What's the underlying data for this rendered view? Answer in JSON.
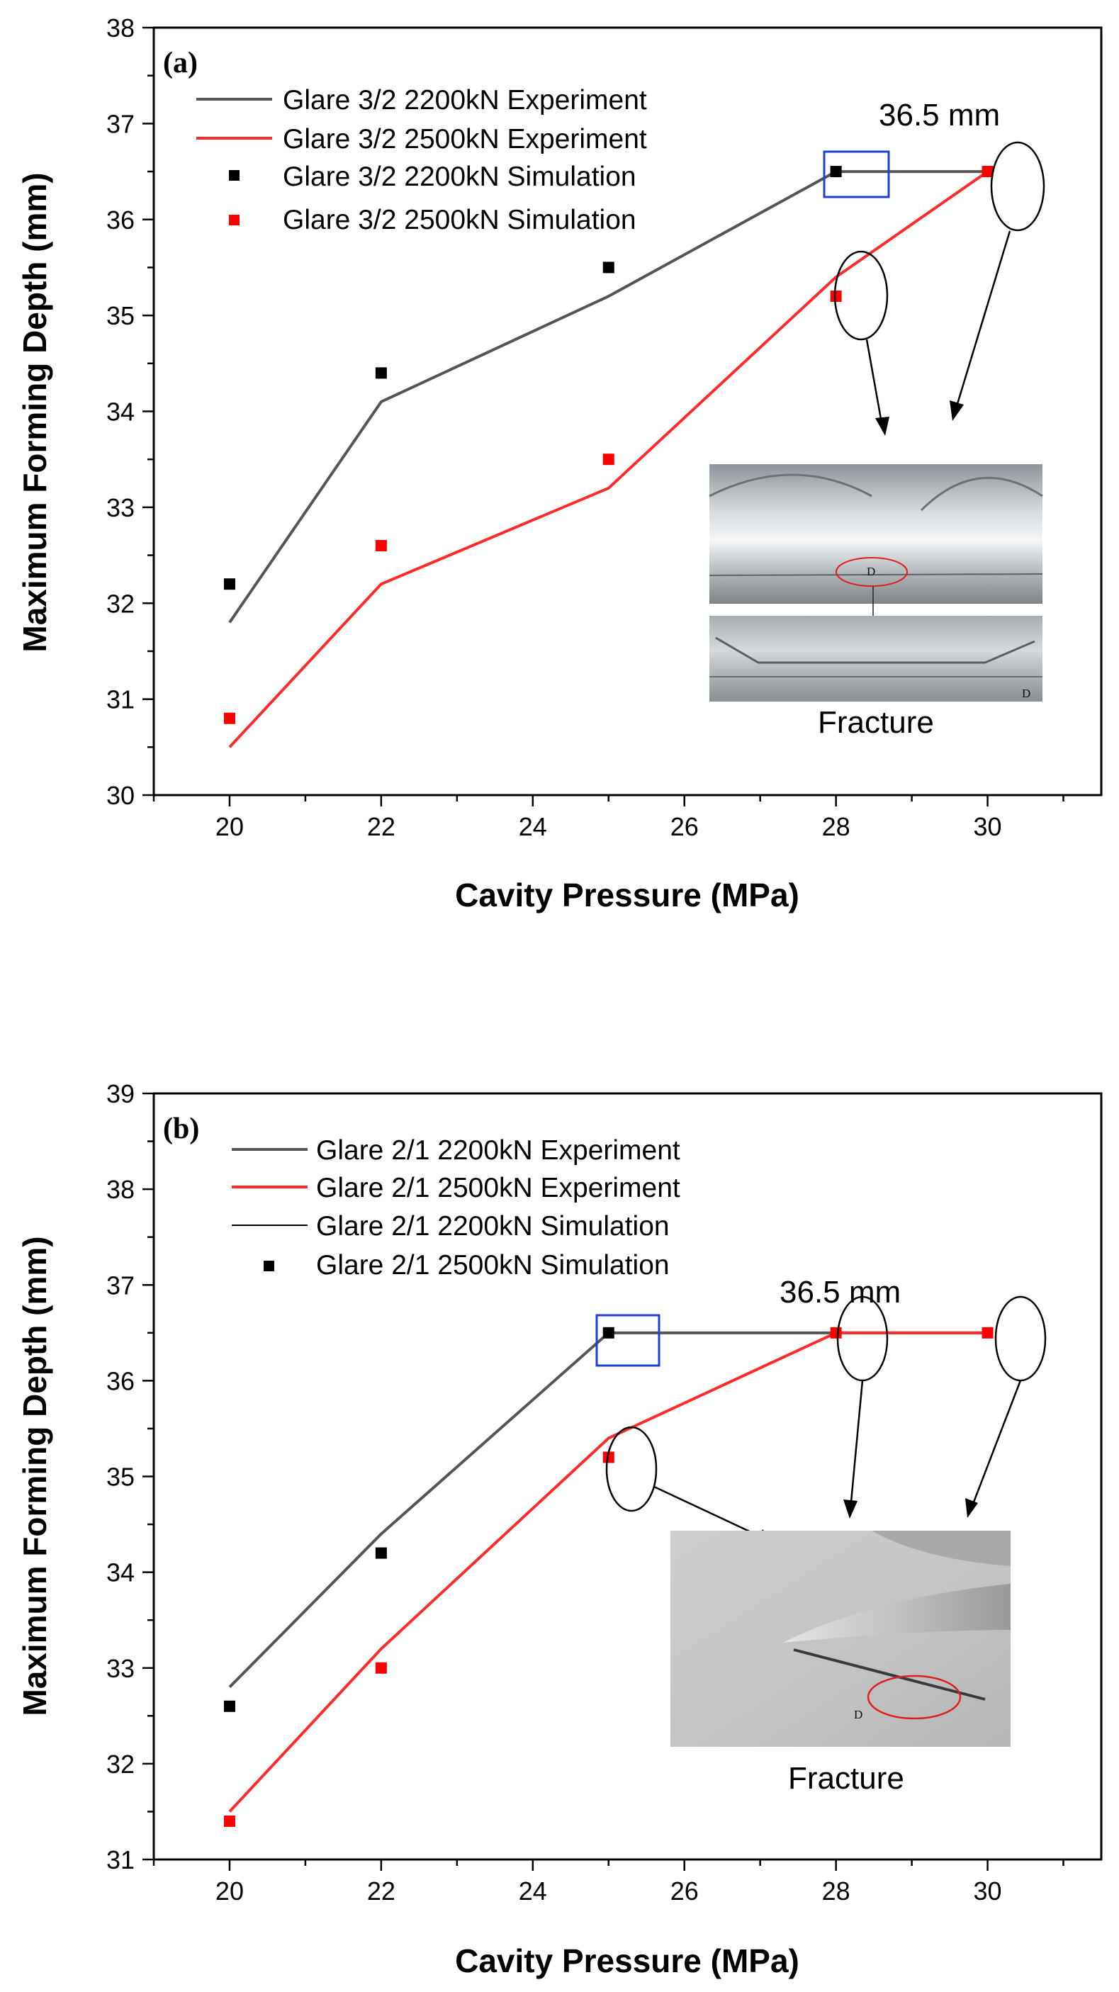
{
  "chart_data": [
    {
      "type": "line",
      "panel_label": "(a)",
      "xlabel": "Cavity Pressure (MPa)",
      "ylabel": "Maximum Forming Depth (mm)",
      "xlim": [
        19,
        31.5
      ],
      "ylim": [
        30,
        38
      ],
      "x_ticks": [
        "20",
        "22",
        "24",
        "26",
        "28",
        "30"
      ],
      "y_ticks": [
        "30",
        "31",
        "32",
        "33",
        "34",
        "35",
        "36",
        "37",
        "38"
      ],
      "legend_position": "top-left",
      "series": [
        {
          "name": "Glare 3/2 2200kN Experiment",
          "kind": "line",
          "color": "#555555",
          "x": [
            20,
            22,
            25,
            28,
            30
          ],
          "y": [
            31.8,
            34.1,
            35.2,
            36.5,
            36.5
          ]
        },
        {
          "name": "Glare 3/2 2500kN Experiment",
          "kind": "line",
          "color": "#ff2a2a",
          "x": [
            20,
            22,
            25,
            28,
            30
          ],
          "y": [
            30.5,
            32.2,
            33.2,
            35.4,
            36.5
          ]
        },
        {
          "name": "Glare 3/2 2200kN Simulation",
          "kind": "marker",
          "color": "#000000",
          "x": [
            20,
            22,
            25,
            28
          ],
          "y": [
            32.2,
            34.4,
            35.5,
            36.5
          ]
        },
        {
          "name": "Glare 3/2 2500kN Simulation",
          "kind": "marker",
          "color": "#ff0000",
          "x": [
            20,
            22,
            25,
            28,
            30
          ],
          "y": [
            30.8,
            32.6,
            33.5,
            35.2,
            36.5
          ]
        }
      ],
      "annotations": {
        "depth_label": "36.5 mm",
        "fracture_label": "Fracture",
        "photo_marker": "D"
      }
    },
    {
      "type": "line",
      "panel_label": "(b)",
      "xlabel": "Cavity Pressure (MPa)",
      "ylabel": "Maximum Forming Depth (mm)",
      "xlim": [
        19,
        31.5
      ],
      "ylim": [
        31,
        39
      ],
      "x_ticks": [
        "20",
        "22",
        "24",
        "26",
        "28",
        "30"
      ],
      "y_ticks": [
        "31",
        "32",
        "33",
        "34",
        "35",
        "36",
        "37",
        "38",
        "39"
      ],
      "legend_position": "top-left",
      "series": [
        {
          "name": "Glare 2/1 2200kN Experiment",
          "kind": "line",
          "color": "#555555",
          "x": [
            20,
            22,
            25,
            28,
            30
          ],
          "y": [
            32.8,
            34.4,
            36.5,
            36.5,
            36.5
          ]
        },
        {
          "name": "Glare 2/1 2500kN Experiment",
          "kind": "line",
          "color": "#ff2a2a",
          "x": [
            20,
            22,
            25,
            28,
            30
          ],
          "y": [
            31.5,
            33.2,
            35.4,
            36.5,
            36.5
          ]
        },
        {
          "name": "Glare 2/1 2200kN Simulation",
          "kind": "marker",
          "color": "#000000",
          "x": [
            20,
            22,
            25
          ],
          "y": [
            32.6,
            34.2,
            36.5
          ]
        },
        {
          "name": "Glare 2/1 2500kN Simulation",
          "kind": "marker",
          "color": "#ff0000",
          "x": [
            20,
            22,
            25,
            28,
            30
          ],
          "y": [
            31.4,
            33.0,
            35.2,
            36.5,
            36.5
          ]
        }
      ],
      "annotations": {
        "depth_label": "36.5 mm",
        "fracture_label": "Fracture",
        "photo_marker": "D"
      }
    }
  ]
}
